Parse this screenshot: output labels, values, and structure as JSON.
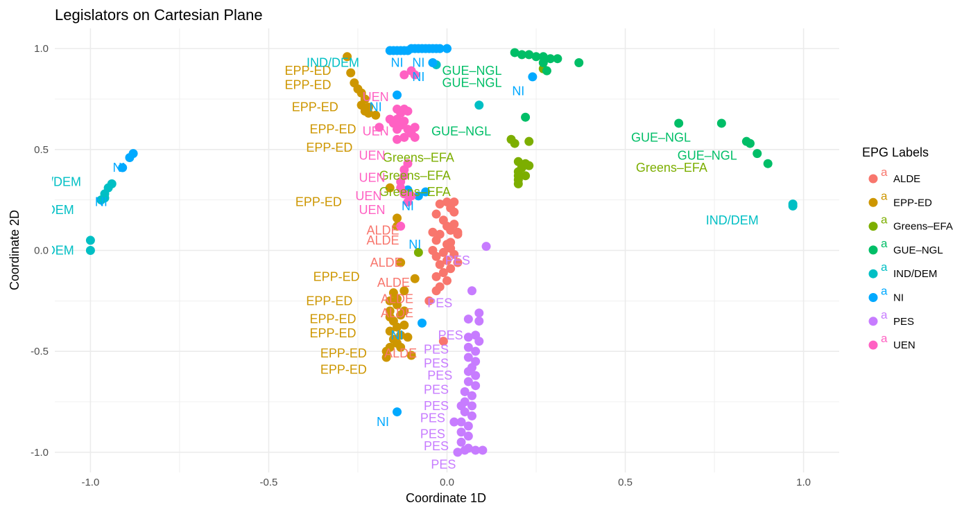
{
  "chart_data": {
    "type": "scatter",
    "title": "Legislators on Cartesian Plane",
    "xlabel": "Coordinate 1D",
    "ylabel": "Coordinate 2D",
    "xlim": [
      -1.1,
      1.1
    ],
    "ylim": [
      -1.1,
      1.1
    ],
    "x_ticks": [
      -1.0,
      -0.5,
      0.0,
      0.5,
      1.0
    ],
    "x_tick_labels": [
      "-1.0",
      "-0.5",
      "0.0",
      "0.5",
      "1.0"
    ],
    "y_ticks": [
      -1.0,
      -0.5,
      0.0,
      0.5,
      1.0
    ],
    "y_tick_labels": [
      "-1.0",
      "-0.5",
      "0.0",
      "0.5",
      "1.0"
    ],
    "grid": true,
    "legend": {
      "title": "EPG Labels",
      "position": "right",
      "key_glyph": "a"
    },
    "series": [
      {
        "name": "ALDE",
        "color": "#F8766D",
        "points": [
          [
            -0.02,
            0.23
          ],
          [
            0.0,
            0.24
          ],
          [
            0.01,
            0.21
          ],
          [
            0.02,
            0.19
          ],
          [
            -0.03,
            0.18
          ],
          [
            -0.01,
            0.15
          ],
          [
            0.0,
            0.12
          ],
          [
            0.01,
            0.1
          ],
          [
            -0.02,
            0.08
          ],
          [
            -0.03,
            0.05
          ],
          [
            0.0,
            0.03
          ],
          [
            0.01,
            0.01
          ],
          [
            -0.01,
            -0.01
          ],
          [
            -0.03,
            -0.03
          ],
          [
            0.0,
            -0.05
          ],
          [
            -0.02,
            -0.07
          ],
          [
            0.01,
            -0.09
          ],
          [
            -0.01,
            -0.11
          ],
          [
            -0.03,
            -0.13
          ],
          [
            0.0,
            -0.15
          ],
          [
            -0.02,
            -0.18
          ],
          [
            -0.05,
            -0.25
          ],
          [
            -0.03,
            -0.2
          ],
          [
            0.02,
            0.13
          ],
          [
            0.03,
            0.08
          ],
          [
            0.02,
            -0.02
          ],
          [
            0.03,
            -0.06
          ],
          [
            0.02,
            0.24
          ],
          [
            -0.04,
            0.09
          ],
          [
            0.03,
            0.09
          ],
          [
            -0.01,
            -0.45
          ],
          [
            -0.04,
            0.0
          ],
          [
            0.01,
            0.04
          ]
        ],
        "labels": [
          [
            -0.18,
            0.1
          ],
          [
            -0.18,
            0.05
          ],
          [
            -0.17,
            -0.06
          ],
          [
            -0.15,
            -0.16
          ],
          [
            -0.14,
            -0.24
          ],
          [
            -0.14,
            -0.31
          ],
          [
            -0.13,
            -0.51
          ]
        ]
      },
      {
        "name": "EPP-ED",
        "color": "#CD9600",
        "points": [
          [
            -0.28,
            0.96
          ],
          [
            -0.27,
            0.88
          ],
          [
            -0.26,
            0.83
          ],
          [
            -0.25,
            0.8
          ],
          [
            -0.24,
            0.78
          ],
          [
            -0.23,
            0.75
          ],
          [
            -0.24,
            0.72
          ],
          [
            -0.23,
            0.69
          ],
          [
            -0.22,
            0.68
          ],
          [
            -0.2,
            0.67
          ],
          [
            -0.22,
            0.71
          ],
          [
            -0.16,
            0.31
          ],
          [
            -0.14,
            0.16
          ],
          [
            -0.14,
            0.12
          ],
          [
            -0.13,
            -0.06
          ],
          [
            -0.09,
            -0.14
          ],
          [
            -0.1,
            -0.52
          ],
          [
            -0.12,
            -0.2
          ],
          [
            -0.15,
            -0.21
          ],
          [
            -0.16,
            -0.25
          ],
          [
            -0.14,
            -0.27
          ],
          [
            -0.16,
            -0.3
          ],
          [
            -0.13,
            -0.32
          ],
          [
            -0.15,
            -0.35
          ],
          [
            -0.14,
            -0.38
          ],
          [
            -0.16,
            -0.4
          ],
          [
            -0.13,
            -0.42
          ],
          [
            -0.15,
            -0.44
          ],
          [
            -0.14,
            -0.46
          ],
          [
            -0.16,
            -0.48
          ],
          [
            -0.17,
            -0.5
          ],
          [
            -0.17,
            -0.53
          ],
          [
            -0.12,
            -0.3
          ],
          [
            -0.12,
            -0.37
          ],
          [
            -0.11,
            -0.43
          ],
          [
            -0.16,
            -0.33
          ],
          [
            -0.14,
            -0.24
          ],
          [
            -0.13,
            -0.48
          ]
        ],
        "labels": [
          [
            -0.39,
            0.89
          ],
          [
            -0.39,
            0.82
          ],
          [
            -0.37,
            0.71
          ],
          [
            -0.32,
            0.6
          ],
          [
            -0.33,
            0.51
          ],
          [
            -0.36,
            0.24
          ],
          [
            -0.31,
            -0.13
          ],
          [
            -0.33,
            -0.25
          ],
          [
            -0.32,
            -0.34
          ],
          [
            -0.32,
            -0.41
          ],
          [
            -0.29,
            -0.51
          ],
          [
            -0.29,
            -0.59
          ]
        ]
      },
      {
        "name": "Greens–EFA",
        "color": "#7CAE00",
        "points": [
          [
            0.18,
            0.55
          ],
          [
            0.19,
            0.53
          ],
          [
            0.23,
            0.54
          ],
          [
            0.2,
            0.44
          ],
          [
            0.21,
            0.42
          ],
          [
            0.2,
            0.39
          ],
          [
            0.22,
            0.37
          ],
          [
            0.2,
            0.35
          ],
          [
            0.22,
            0.43
          ],
          [
            0.27,
            0.9
          ],
          [
            -0.08,
            -0.01
          ],
          [
            0.2,
            0.37
          ],
          [
            0.21,
            0.41
          ],
          [
            0.23,
            0.42
          ],
          [
            0.2,
            0.33
          ]
        ],
        "labels": [
          [
            -0.08,
            0.46
          ],
          [
            -0.09,
            0.37
          ],
          [
            -0.09,
            0.29
          ],
          [
            0.63,
            0.41
          ]
        ]
      },
      {
        "name": "GUE–NGL",
        "color": "#00BE67",
        "points": [
          [
            0.19,
            0.98
          ],
          [
            0.21,
            0.97
          ],
          [
            0.23,
            0.97
          ],
          [
            0.25,
            0.96
          ],
          [
            0.27,
            0.96
          ],
          [
            0.29,
            0.95
          ],
          [
            0.31,
            0.95
          ],
          [
            0.37,
            0.93
          ],
          [
            0.27,
            0.93
          ],
          [
            0.28,
            0.89
          ],
          [
            0.22,
            0.66
          ],
          [
            0.65,
            0.63
          ],
          [
            0.77,
            0.63
          ],
          [
            0.84,
            0.54
          ],
          [
            0.85,
            0.53
          ],
          [
            0.87,
            0.48
          ],
          [
            0.9,
            0.43
          ]
        ],
        "labels": [
          [
            0.07,
            0.89
          ],
          [
            0.07,
            0.83
          ],
          [
            0.04,
            0.59
          ],
          [
            0.6,
            0.56
          ],
          [
            0.73,
            0.47
          ]
        ]
      },
      {
        "name": "IND/DEM",
        "color": "#00BFC4",
        "points": [
          [
            -1.0,
            0.05
          ],
          [
            -1.0,
            0.0
          ],
          [
            -0.97,
            0.25
          ],
          [
            -0.96,
            0.28
          ],
          [
            -0.95,
            0.31
          ],
          [
            -0.94,
            0.33
          ],
          [
            -0.96,
            0.26
          ],
          [
            -0.03,
            0.92
          ],
          [
            0.09,
            0.72
          ],
          [
            0.97,
            0.23
          ],
          [
            0.97,
            0.22
          ]
        ],
        "labels": [
          [
            -1.1,
            0.34
          ],
          [
            -1.12,
            0.2
          ],
          [
            -1.12,
            0.0
          ],
          [
            -0.32,
            0.93
          ],
          [
            0.8,
            0.15
          ]
        ]
      },
      {
        "name": "NI",
        "color": "#00A9FF",
        "points": [
          [
            -0.16,
            0.99
          ],
          [
            -0.15,
            0.99
          ],
          [
            -0.14,
            0.99
          ],
          [
            -0.13,
            0.99
          ],
          [
            -0.12,
            0.99
          ],
          [
            -0.11,
            0.99
          ],
          [
            -0.1,
            1.0
          ],
          [
            -0.09,
            1.0
          ],
          [
            -0.08,
            1.0
          ],
          [
            -0.07,
            1.0
          ],
          [
            -0.06,
            1.0
          ],
          [
            -0.05,
            1.0
          ],
          [
            -0.04,
            1.0
          ],
          [
            -0.03,
            1.0
          ],
          [
            -0.02,
            1.0
          ],
          [
            0.0,
            1.0
          ],
          [
            -0.04,
            0.93
          ],
          [
            -0.14,
            0.77
          ],
          [
            0.24,
            0.86
          ],
          [
            -0.88,
            0.48
          ],
          [
            -0.89,
            0.46
          ],
          [
            -0.91,
            0.41
          ],
          [
            -0.06,
            0.29
          ],
          [
            -0.07,
            -0.36
          ],
          [
            -0.14,
            -0.8
          ],
          [
            -0.08,
            0.27
          ],
          [
            -0.11,
            0.3
          ]
        ],
        "labels": [
          [
            -0.14,
            0.93
          ],
          [
            -0.08,
            0.93
          ],
          [
            -0.08,
            0.86
          ],
          [
            -0.2,
            0.71
          ],
          [
            -0.92,
            0.41
          ],
          [
            -0.97,
            0.24
          ],
          [
            -0.11,
            0.22
          ],
          [
            -0.09,
            0.03
          ],
          [
            -0.14,
            -0.42
          ],
          [
            -0.18,
            -0.85
          ],
          [
            0.2,
            0.79
          ]
        ]
      },
      {
        "name": "PES",
        "color": "#C77CFF",
        "points": [
          [
            0.11,
            0.02
          ],
          [
            0.07,
            -0.2
          ],
          [
            0.09,
            -0.31
          ],
          [
            0.09,
            -0.35
          ],
          [
            0.06,
            -0.34
          ],
          [
            0.06,
            -0.43
          ],
          [
            0.08,
            -0.42
          ],
          [
            0.09,
            -0.45
          ],
          [
            0.06,
            -0.48
          ],
          [
            0.08,
            -0.5
          ],
          [
            0.06,
            -0.53
          ],
          [
            0.08,
            -0.55
          ],
          [
            0.07,
            -0.58
          ],
          [
            0.06,
            -0.6
          ],
          [
            0.08,
            -0.62
          ],
          [
            0.06,
            -0.65
          ],
          [
            0.08,
            -0.67
          ],
          [
            0.05,
            -0.7
          ],
          [
            0.07,
            -0.72
          ],
          [
            0.05,
            -0.75
          ],
          [
            0.07,
            -0.77
          ],
          [
            0.05,
            -0.8
          ],
          [
            0.07,
            -0.82
          ],
          [
            0.04,
            -0.85
          ],
          [
            0.06,
            -0.87
          ],
          [
            0.04,
            -0.9
          ],
          [
            0.06,
            -0.92
          ],
          [
            0.04,
            -0.95
          ],
          [
            0.06,
            -0.98
          ],
          [
            0.08,
            -0.99
          ],
          [
            0.1,
            -0.99
          ],
          [
            0.05,
            -0.99
          ],
          [
            0.03,
            -1.0
          ],
          [
            0.02,
            -0.85
          ],
          [
            0.04,
            -0.77
          ]
        ],
        "labels": [
          [
            0.03,
            -0.05
          ],
          [
            -0.02,
            -0.26
          ],
          [
            0.01,
            -0.42
          ],
          [
            -0.03,
            -0.49
          ],
          [
            -0.03,
            -0.56
          ],
          [
            -0.02,
            -0.62
          ],
          [
            -0.03,
            -0.69
          ],
          [
            -0.03,
            -0.77
          ],
          [
            -0.04,
            -0.83
          ],
          [
            -0.04,
            -0.91
          ],
          [
            -0.03,
            -0.97
          ],
          [
            -0.01,
            -1.06
          ]
        ]
      },
      {
        "name": "UEN",
        "color": "#FF61C3",
        "points": [
          [
            -0.12,
            0.87
          ],
          [
            -0.1,
            0.89
          ],
          [
            -0.09,
            0.87
          ],
          [
            -0.14,
            0.7
          ],
          [
            -0.13,
            0.68
          ],
          [
            -0.12,
            0.7
          ],
          [
            -0.11,
            0.69
          ],
          [
            -0.16,
            0.65
          ],
          [
            -0.15,
            0.63
          ],
          [
            -0.14,
            0.65
          ],
          [
            -0.13,
            0.62
          ],
          [
            -0.12,
            0.64
          ],
          [
            -0.11,
            0.6
          ],
          [
            -0.09,
            0.61
          ],
          [
            -0.1,
            0.58
          ],
          [
            -0.12,
            0.56
          ],
          [
            -0.14,
            0.6
          ],
          [
            -0.19,
            0.61
          ],
          [
            -0.11,
            0.43
          ],
          [
            -0.12,
            0.4
          ],
          [
            -0.12,
            0.37
          ],
          [
            -0.13,
            0.34
          ],
          [
            -0.13,
            0.31
          ],
          [
            -0.12,
            0.28
          ],
          [
            -0.1,
            0.27
          ],
          [
            -0.11,
            0.24
          ],
          [
            -0.13,
            0.12
          ],
          [
            -0.09,
            0.56
          ],
          [
            -0.14,
            0.55
          ]
        ],
        "labels": [
          [
            -0.2,
            0.76
          ],
          [
            -0.2,
            0.59
          ],
          [
            -0.21,
            0.47
          ],
          [
            -0.21,
            0.36
          ],
          [
            -0.22,
            0.27
          ],
          [
            -0.21,
            0.2
          ]
        ]
      }
    ]
  }
}
